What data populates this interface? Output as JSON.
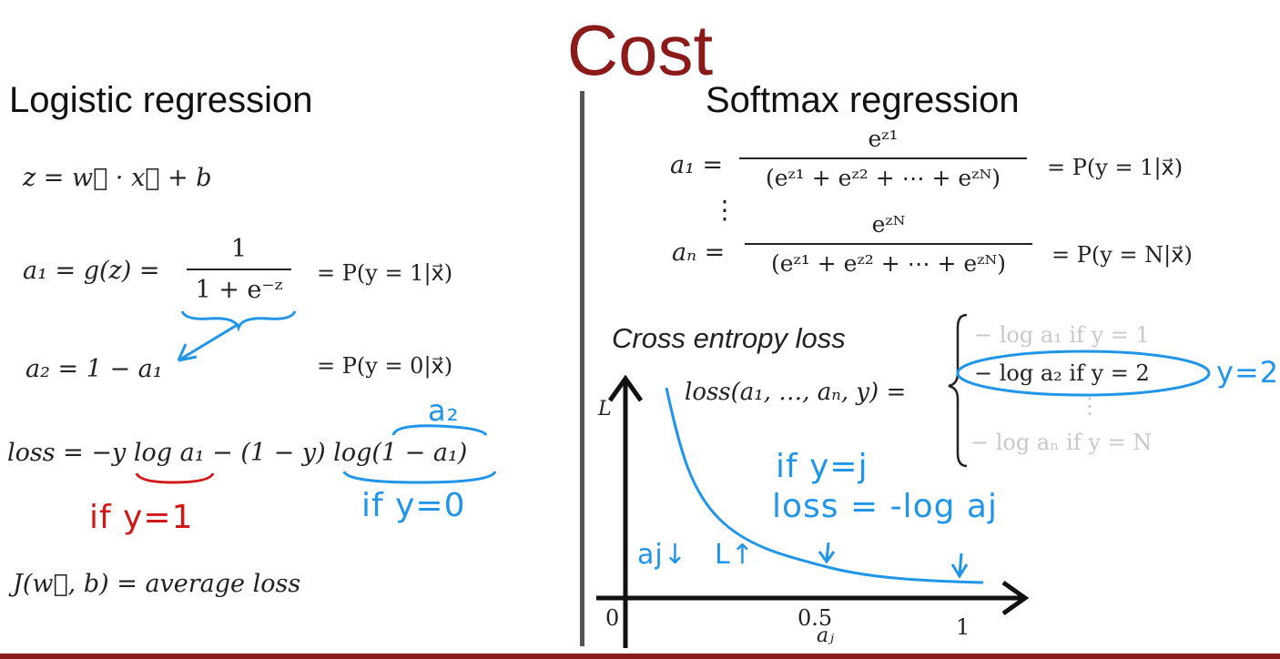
{
  "title": "Cost",
  "left": {
    "heading": "Logistic regression",
    "eq_z": "z = w⃗ · x⃗ + b",
    "eq_a1_lhs": "a₁ = g(z) =",
    "eq_a1_num": "1",
    "eq_a1_den": "1 + e⁻ᶻ",
    "eq_a1_rhs": "= P(y = 1|x⃗)",
    "eq_a2_lhs": "a₂ = 1 − a₁",
    "eq_a2_rhs": "= P(y = 0|x⃗)",
    "eq_loss": "loss = −y log a₁ − (1 − y) log(1 − a₁)",
    "note_a2": "a₂",
    "note_y1": "if y=1",
    "note_y0": "if y=0",
    "eq_j": "J(w⃗, b) = average loss"
  },
  "right": {
    "heading": "Softmax regression",
    "a1_lhs": "a₁ =",
    "a1_num": "eᶻ¹",
    "a1_den": "(eᶻ¹ + eᶻ² + ⋯ + eᶻᴺ)",
    "a1_rhs": "= P(y = 1|x⃗)",
    "vdots": "⋮",
    "aN_lhs": "aₙ =",
    "aN_num": "eᶻᴺ",
    "aN_den": "(eᶻ¹ + eᶻ² + ⋯ + eᶻᴺ)",
    "aN_rhs": "= P(y = N|x⃗)",
    "ce_label": "Cross entropy loss",
    "loss_lhs": "loss(a₁, …, aₙ, y) =",
    "case1": "− log a₁    if y = 1",
    "case2": "− log a₂    if y = 2",
    "case_dots": "⋮",
    "caseN": "− log aₙ    if y = N",
    "note_y2": "y=2",
    "note_ifyj": "if y=j",
    "note_loss": "loss = -log aj",
    "note_aj": "aj↓",
    "note_L": "L↑",
    "axis_y_label": "L",
    "axis_x_label": "aⱼ",
    "tick_0": "0",
    "tick_05": "0.5",
    "tick_1": "1"
  },
  "colors": {
    "title": "#8b1a1a",
    "annotation_blue": "#2196e8",
    "annotation_red": "#d01818",
    "faded": "#c8c8c8"
  }
}
